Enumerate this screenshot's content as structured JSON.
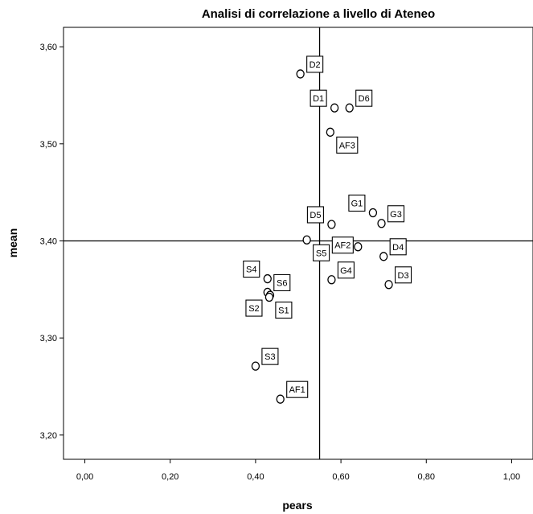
{
  "chart_data": {
    "type": "scatter",
    "title": "Analisi di correlazione a livello di Ateneo",
    "xlabel": "pears",
    "ylabel": "mean",
    "xlim": [
      -0.05,
      1.05
    ],
    "ylim": [
      3.175,
      3.62
    ],
    "x_ticks": [
      {
        "value": 0.0,
        "label": "0,00"
      },
      {
        "value": 0.2,
        "label": "0,20"
      },
      {
        "value": 0.4,
        "label": "0,40"
      },
      {
        "value": 0.6,
        "label": "0,60"
      },
      {
        "value": 0.8,
        "label": "0,80"
      },
      {
        "value": 1.0,
        "label": "1,00"
      }
    ],
    "y_ticks": [
      {
        "value": 3.2,
        "label": "3,20"
      },
      {
        "value": 3.3,
        "label": "3,30"
      },
      {
        "value": 3.4,
        "label": "3,40"
      },
      {
        "value": 3.5,
        "label": "3,50"
      },
      {
        "value": 3.6,
        "label": "3,60"
      }
    ],
    "reference_lines": {
      "x": 0.55,
      "y": 3.4
    },
    "grid": false,
    "marker": "open-circle",
    "points": [
      {
        "label": "D2",
        "x": 0.505,
        "y": 3.572,
        "label_pos": "upper-right"
      },
      {
        "label": "D1",
        "x": 0.585,
        "y": 3.537,
        "label_pos": "upper-left"
      },
      {
        "label": "D6",
        "x": 0.62,
        "y": 3.537,
        "label_pos": "upper-right"
      },
      {
        "label": "AF3",
        "x": 0.575,
        "y": 3.512,
        "label_pos": "lower-right"
      },
      {
        "label": "G1",
        "x": 0.675,
        "y": 3.429,
        "label_pos": "upper-left"
      },
      {
        "label": "G3",
        "x": 0.695,
        "y": 3.418,
        "label_pos": "upper-right"
      },
      {
        "label": "D5",
        "x": 0.578,
        "y": 3.417,
        "label_pos": "upper-left"
      },
      {
        "label": "S5",
        "x": 0.52,
        "y": 3.401,
        "label_pos": "lower-right"
      },
      {
        "label": "AF2",
        "x": 0.64,
        "y": 3.394,
        "label_pos": "left"
      },
      {
        "label": "D4",
        "x": 0.7,
        "y": 3.384,
        "label_pos": "upper-right"
      },
      {
        "label": "G4",
        "x": 0.578,
        "y": 3.36,
        "label_pos": "upper-right"
      },
      {
        "label": "D3",
        "x": 0.712,
        "y": 3.355,
        "label_pos": "upper-right"
      },
      {
        "label": "S4",
        "x": 0.428,
        "y": 3.361,
        "label_pos": "upper-left"
      },
      {
        "label": "S6",
        "x": 0.428,
        "y": 3.347,
        "label_pos": "upper-right"
      },
      {
        "label": "S2",
        "x": 0.434,
        "y": 3.344,
        "label_pos": "lower-left"
      },
      {
        "label": "S1",
        "x": 0.432,
        "y": 3.342,
        "label_pos": "lower-right"
      },
      {
        "label": "S3",
        "x": 0.4,
        "y": 3.271,
        "label_pos": "upper-right"
      },
      {
        "label": "AF1",
        "x": 0.458,
        "y": 3.237,
        "label_pos": "upper-right"
      }
    ]
  }
}
